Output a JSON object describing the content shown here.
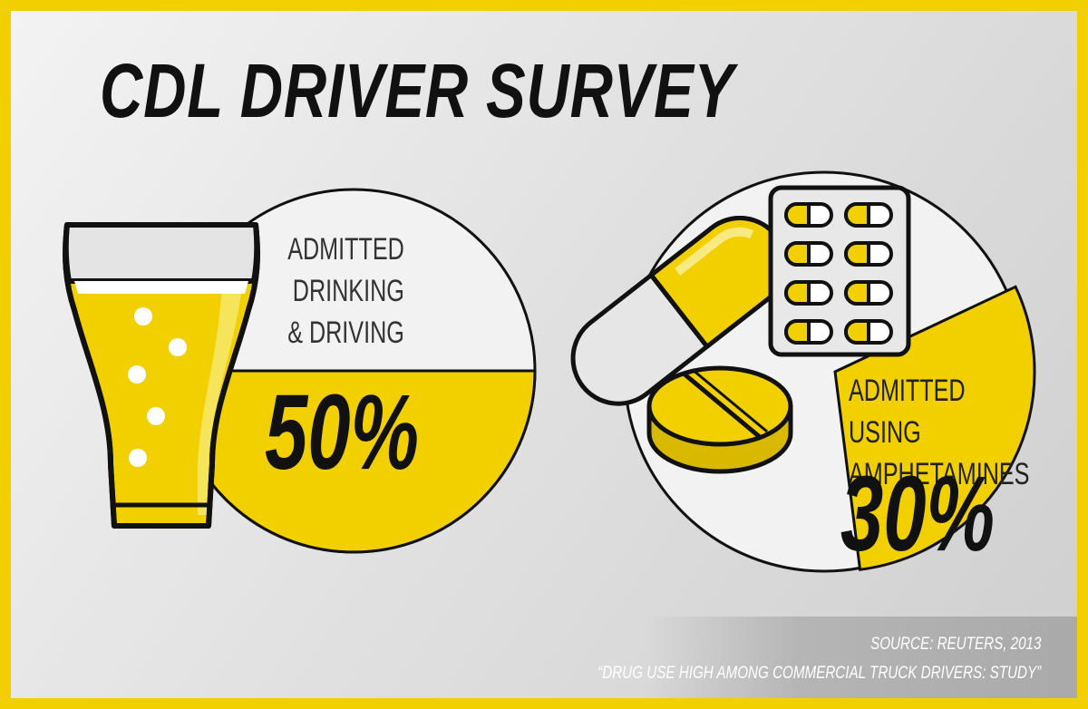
{
  "title": "CDL DRIVER SURVEY",
  "chart_data": {
    "type": "pie",
    "title": "CDL DRIVER SURVEY",
    "charts": [
      {
        "label": "ADMITTED\nDRINKING\n& DRIVING",
        "value": 50,
        "value_label": "50%",
        "icon": "beer-glass-icon"
      },
      {
        "label": "ADMITTED USING\nAMPHETAMINES",
        "value": 30,
        "value_label": "30%",
        "icon": "pills-icon"
      }
    ]
  },
  "source": {
    "line1": "SOURCE: REUTERS, 2013",
    "line2": "“DRUG USE HIGH AMONG COMMERCIAL TRUCK DRIVERS: STUDY”"
  },
  "colors": {
    "accent": "#f2d000",
    "dark": "#111111",
    "pie_base": "#f2f2f2",
    "background": "#d9d9d9"
  }
}
